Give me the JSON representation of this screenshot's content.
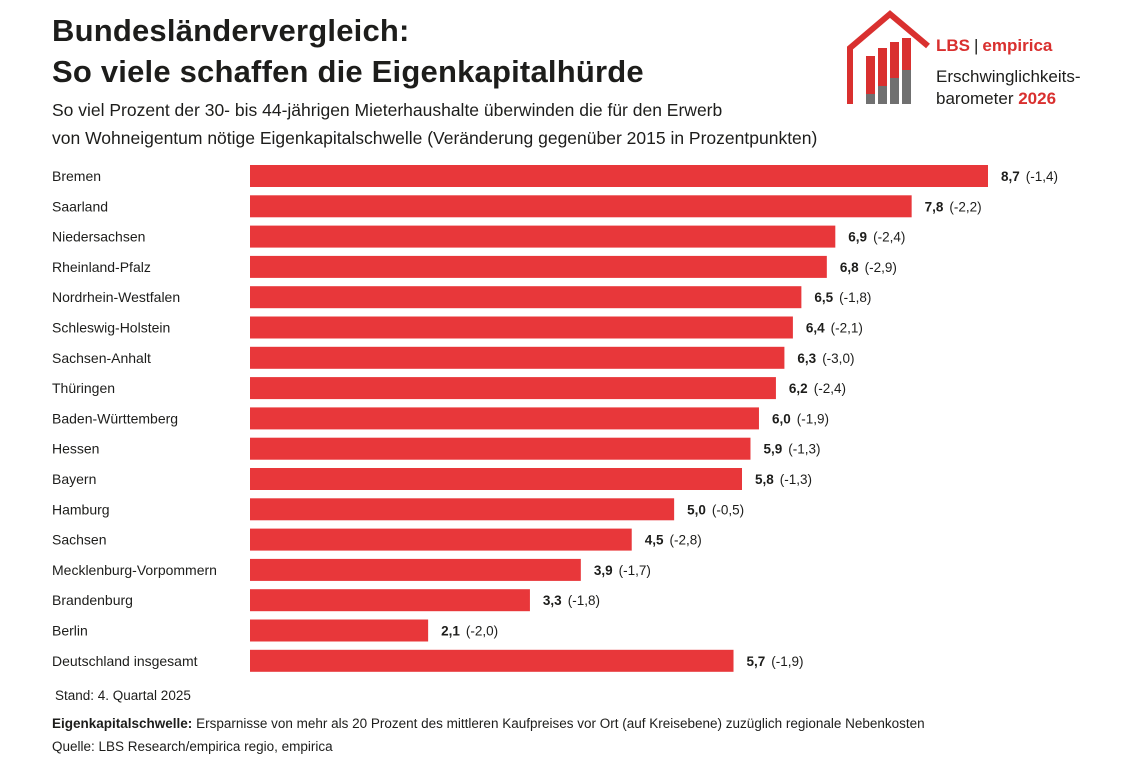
{
  "header": {
    "title_line1": "Bundesländervergleich:",
    "title_line2": "So viele schaffen die Eigenkapitalhürde",
    "subtitle_line1": "So viel Prozent der 30- bis 44-jährigen Mieterhaushalte überwinden die für den Erwerb",
    "subtitle_line2": "von Wohneigentum nötige Eigenkapitalschwelle (Veränderung gegenüber 2015 in Prozentpunkten)"
  },
  "logo": {
    "brand_left": "LBS",
    "brand_sep": "|",
    "brand_right": "empirica",
    "product_line1": "Erschwinglichkeits-",
    "product_line2": "barometer",
    "product_year": "2026"
  },
  "chart_data": {
    "type": "bar",
    "orientation": "horizontal",
    "categories": [
      "Bremen",
      "Saarland",
      "Niedersachsen",
      "Rheinland-Pfalz",
      "Nordrhein-Westfalen",
      "Schleswig-Holstein",
      "Sachsen-Anhalt",
      "Thüringen",
      "Baden-Württemberg",
      "Hessen",
      "Bayern",
      "Hamburg",
      "Sachsen",
      "Mecklenburg-Vorpommern",
      "Brandenburg",
      "Berlin",
      "Deutschland insgesamt"
    ],
    "values": [
      8.7,
      7.8,
      6.9,
      6.8,
      6.5,
      6.4,
      6.3,
      6.2,
      6.0,
      5.9,
      5.8,
      5.0,
      4.5,
      3.9,
      3.3,
      2.1,
      5.7
    ],
    "value_labels": [
      "8,7",
      "7,8",
      "6,9",
      "6,8",
      "6,5",
      "6,4",
      "6,3",
      "6,2",
      "6,0",
      "5,9",
      "5,8",
      "5,0",
      "4,5",
      "3,9",
      "3,3",
      "2,1",
      "5,7"
    ],
    "changes": [
      -1.4,
      -2.2,
      -2.4,
      -2.9,
      -1.8,
      -2.1,
      -3.0,
      -2.4,
      -1.9,
      -1.3,
      -1.3,
      -0.5,
      -2.8,
      -1.7,
      -1.8,
      -2.0,
      -1.9
    ],
    "change_labels": [
      "(-1,4)",
      "(-2,2)",
      "(-2,4)",
      "(-2,9)",
      "(-1,8)",
      "(-2,1)",
      "(-3,0)",
      "(-2,4)",
      "(-1,9)",
      "(-1,3)",
      "(-1,3)",
      "(-0,5)",
      "(-2,8)",
      "(-1,7)",
      "(-1,8)",
      "(-2,0)",
      "(-1,9)"
    ],
    "xlim": [
      0,
      8.7
    ],
    "grid": false,
    "legend": "none",
    "bar_color": "#e8373a"
  },
  "footer": {
    "stand": "Stand: 4. Quartal 2025",
    "note_label": "Eigenkapitalschwelle:",
    "note_text": " Ersparnisse von mehr als 20 Prozent des mittleren Kaufpreises vor Ort (auf Kreisebene) zuzüglich regionale Nebenkosten",
    "source": "Quelle: LBS Research/empirica regio, empirica"
  },
  "colors": {
    "accent": "#d9302f",
    "bar": "#e8373a",
    "logo_gray": "#707070"
  }
}
